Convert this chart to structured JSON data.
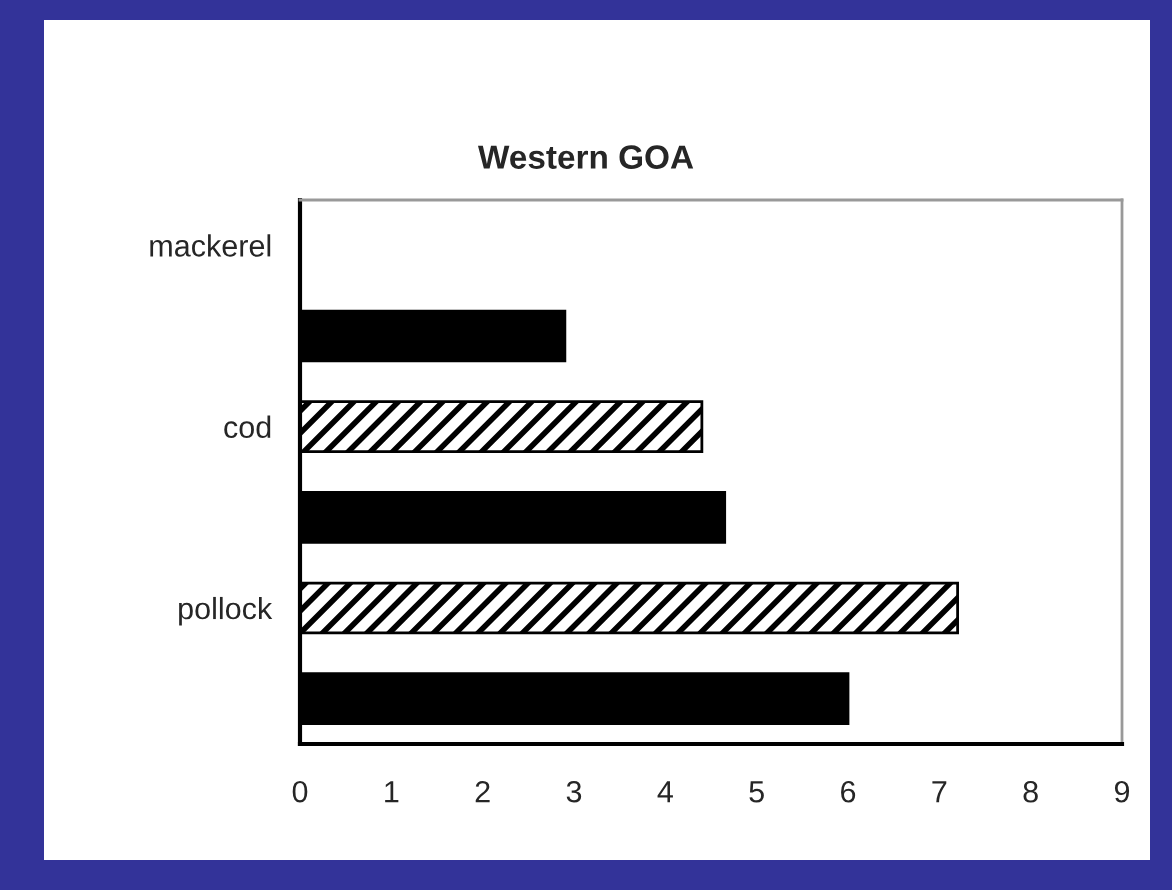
{
  "chart_data": {
    "type": "bar",
    "orientation": "horizontal",
    "title": "Western GOA",
    "categories": [
      "mackerel",
      null,
      "cod",
      null,
      "pollock",
      null
    ],
    "series": [
      {
        "color": "#000000",
        "values": [
          null,
          null,
          4.4,
          null,
          7.2,
          null
        ]
      },
      {
        "color": "#000000",
        "values": [
          null,
          2.9,
          null,
          4.65,
          null,
          6.0
        ]
      }
    ],
    "xlim": [
      0,
      9
    ],
    "xticks": [
      0,
      1,
      2,
      3,
      4,
      5,
      6,
      7,
      8,
      9
    ],
    "grid": false
  }
}
